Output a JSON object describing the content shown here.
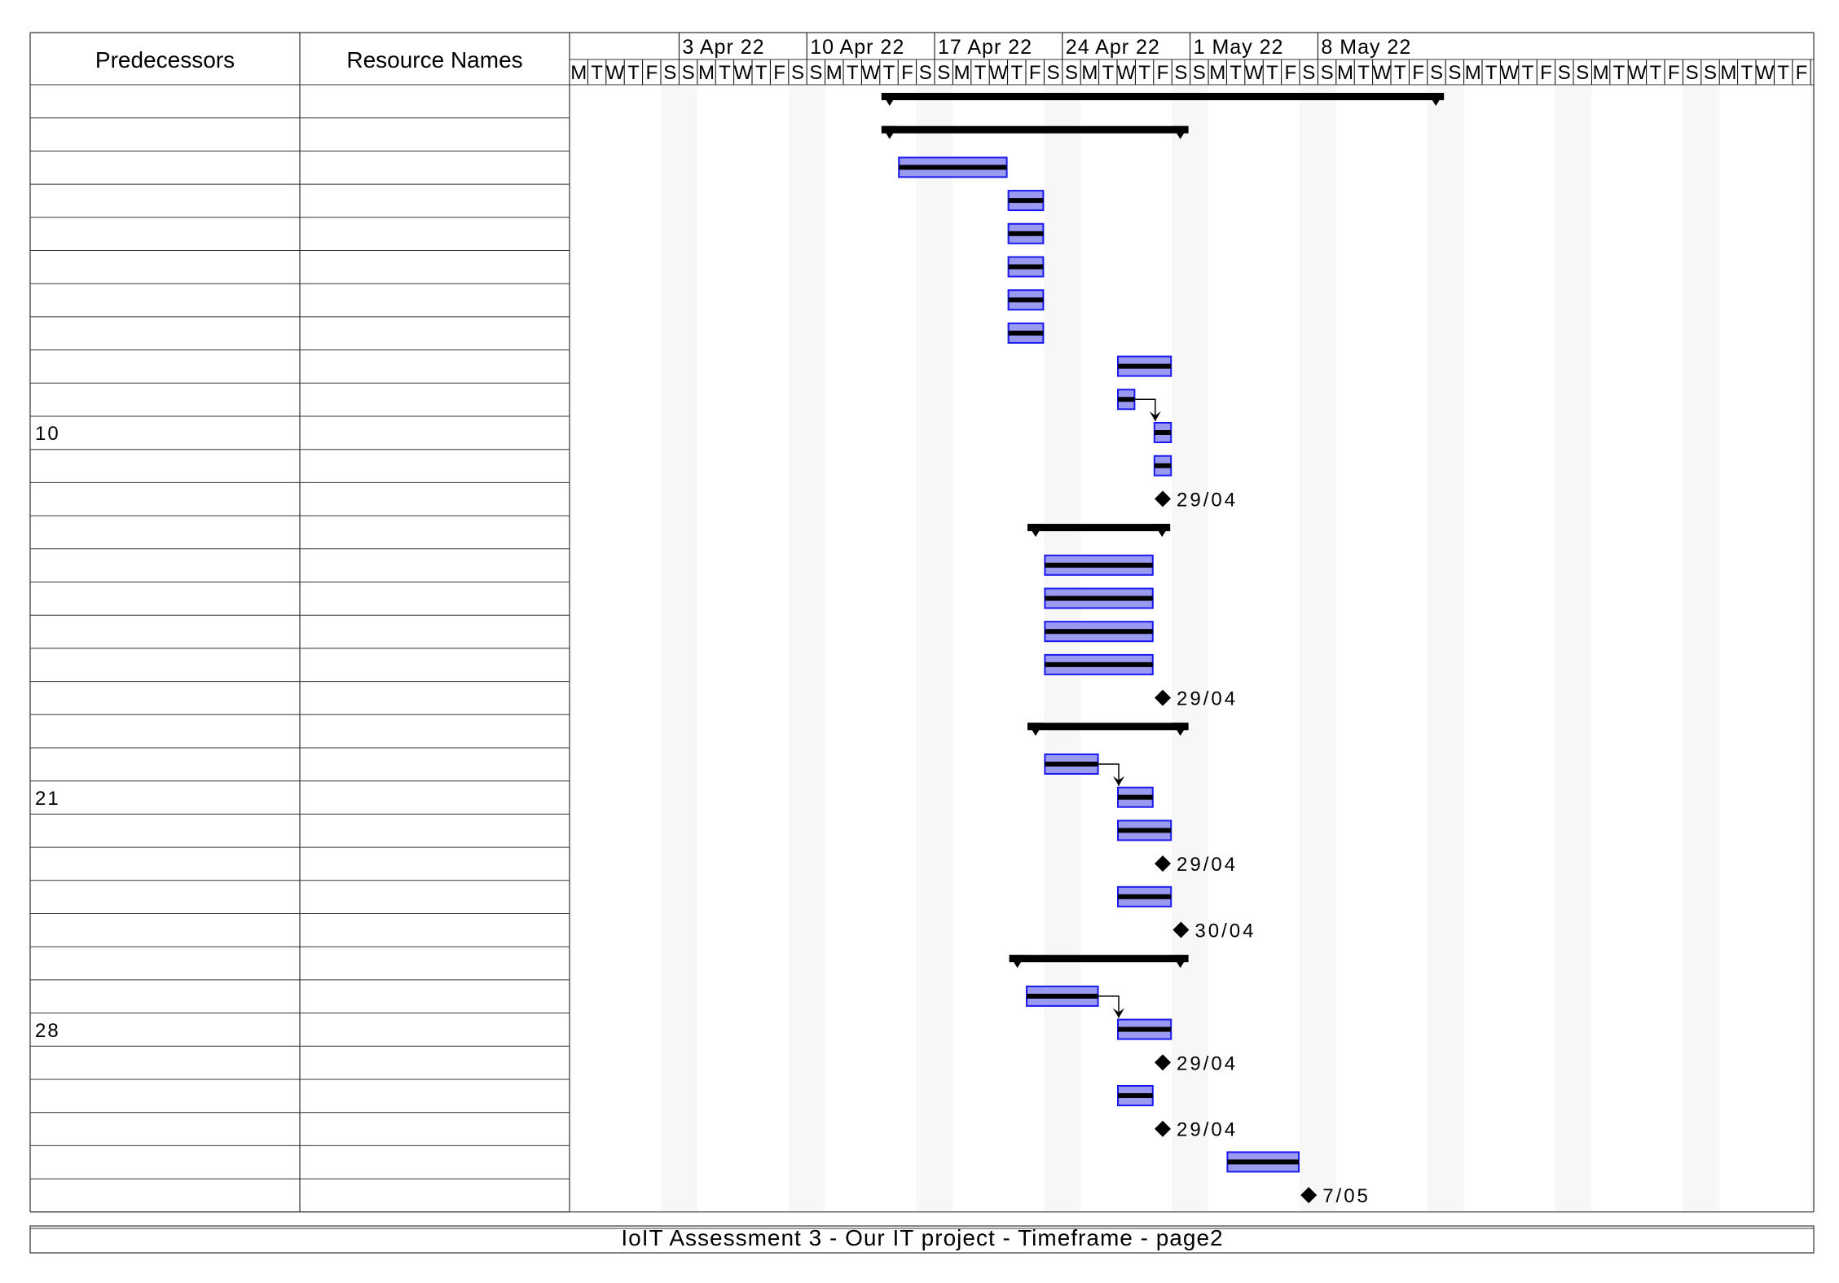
{
  "columns": {
    "predecessors": "Predecessors",
    "resources": "Resource Names"
  },
  "footer": {
    "title": "IoIT Assessment 3 - Our IT project - Timeframe  -  page2"
  },
  "timeline": {
    "start_date": "2022-03-28",
    "day_letters": [
      "M",
      "T",
      "W",
      "T",
      "F",
      "S",
      "S"
    ],
    "week_labels": [
      {
        "date": "2022-04-03",
        "label": "3 Apr 22"
      },
      {
        "date": "2022-04-10",
        "label": "10 Apr 22"
      },
      {
        "date": "2022-04-17",
        "label": "17 Apr 22"
      },
      {
        "date": "2022-04-24",
        "label": "24 Apr 22"
      },
      {
        "date": "2022-05-01",
        "label": "1 May 22"
      },
      {
        "date": "2022-05-08",
        "label": "8 May 22"
      }
    ]
  },
  "colors": {
    "task_fill": "#9a9af0",
    "task_border": "#1a1aee",
    "summary": "#000000",
    "weekend_shade": "#f7f7f7"
  },
  "rows": [
    {
      "pred": "",
      "res": ""
    },
    {
      "pred": "",
      "res": ""
    },
    {
      "pred": "",
      "res": ""
    },
    {
      "pred": "",
      "res": ""
    },
    {
      "pred": "",
      "res": ""
    },
    {
      "pred": "",
      "res": ""
    },
    {
      "pred": "",
      "res": ""
    },
    {
      "pred": "",
      "res": ""
    },
    {
      "pred": "",
      "res": ""
    },
    {
      "pred": "",
      "res": ""
    },
    {
      "pred": "10",
      "res": ""
    },
    {
      "pred": "",
      "res": ""
    },
    {
      "pred": "",
      "res": ""
    },
    {
      "pred": "",
      "res": ""
    },
    {
      "pred": "",
      "res": ""
    },
    {
      "pred": "",
      "res": ""
    },
    {
      "pred": "",
      "res": ""
    },
    {
      "pred": "",
      "res": ""
    },
    {
      "pred": "",
      "res": ""
    },
    {
      "pred": "",
      "res": ""
    },
    {
      "pred": "",
      "res": ""
    },
    {
      "pred": "21",
      "res": ""
    },
    {
      "pred": "",
      "res": ""
    },
    {
      "pred": "",
      "res": ""
    },
    {
      "pred": "",
      "res": ""
    },
    {
      "pred": "",
      "res": ""
    },
    {
      "pred": "",
      "res": ""
    },
    {
      "pred": "",
      "res": ""
    },
    {
      "pred": "28",
      "res": ""
    },
    {
      "pred": "",
      "res": ""
    },
    {
      "pred": "",
      "res": ""
    },
    {
      "pred": "",
      "res": ""
    },
    {
      "pred": "",
      "res": ""
    },
    {
      "pred": "",
      "res": ""
    }
  ],
  "chart_data": {
    "type": "gantt",
    "items": [
      {
        "row": 0,
        "kind": "summary",
        "start": "2022-04-14",
        "end": "2022-05-14"
      },
      {
        "row": 1,
        "kind": "summary",
        "start": "2022-04-14",
        "end": "2022-04-30"
      },
      {
        "row": 2,
        "kind": "task",
        "start": "2022-04-15",
        "end": "2022-04-20"
      },
      {
        "row": 3,
        "kind": "task",
        "start": "2022-04-21",
        "end": "2022-04-22"
      },
      {
        "row": 4,
        "kind": "task",
        "start": "2022-04-21",
        "end": "2022-04-22"
      },
      {
        "row": 5,
        "kind": "task",
        "start": "2022-04-21",
        "end": "2022-04-22"
      },
      {
        "row": 6,
        "kind": "task",
        "start": "2022-04-21",
        "end": "2022-04-22"
      },
      {
        "row": 7,
        "kind": "task",
        "start": "2022-04-21",
        "end": "2022-04-22"
      },
      {
        "row": 8,
        "kind": "task",
        "start": "2022-04-27",
        "end": "2022-04-29"
      },
      {
        "row": 9,
        "kind": "task",
        "start": "2022-04-27",
        "end": "2022-04-27"
      },
      {
        "row": 10,
        "kind": "task",
        "start": "2022-04-29",
        "end": "2022-04-29"
      },
      {
        "row": 11,
        "kind": "task",
        "start": "2022-04-29",
        "end": "2022-04-29"
      },
      {
        "row": 12,
        "kind": "milestone",
        "date": "2022-04-29",
        "label": "29/04"
      },
      {
        "row": 13,
        "kind": "summary",
        "start": "2022-04-22",
        "end": "2022-04-29"
      },
      {
        "row": 14,
        "kind": "task",
        "start": "2022-04-23",
        "end": "2022-04-28"
      },
      {
        "row": 15,
        "kind": "task",
        "start": "2022-04-23",
        "end": "2022-04-28"
      },
      {
        "row": 16,
        "kind": "task",
        "start": "2022-04-23",
        "end": "2022-04-28"
      },
      {
        "row": 17,
        "kind": "task",
        "start": "2022-04-23",
        "end": "2022-04-28"
      },
      {
        "row": 18,
        "kind": "milestone",
        "date": "2022-04-29",
        "label": "29/04"
      },
      {
        "row": 19,
        "kind": "summary",
        "start": "2022-04-22",
        "end": "2022-04-30"
      },
      {
        "row": 20,
        "kind": "task",
        "start": "2022-04-23",
        "end": "2022-04-25"
      },
      {
        "row": 21,
        "kind": "task",
        "start": "2022-04-27",
        "end": "2022-04-28"
      },
      {
        "row": 22,
        "kind": "task",
        "start": "2022-04-27",
        "end": "2022-04-29"
      },
      {
        "row": 23,
        "kind": "milestone",
        "date": "2022-04-29",
        "label": "29/04"
      },
      {
        "row": 24,
        "kind": "task",
        "start": "2022-04-27",
        "end": "2022-04-29"
      },
      {
        "row": 25,
        "kind": "milestone",
        "date": "2022-04-30",
        "label": "30/04"
      },
      {
        "row": 26,
        "kind": "summary",
        "start": "2022-04-21",
        "end": "2022-04-30"
      },
      {
        "row": 27,
        "kind": "task",
        "start": "2022-04-22",
        "end": "2022-04-25"
      },
      {
        "row": 28,
        "kind": "task",
        "start": "2022-04-27",
        "end": "2022-04-29"
      },
      {
        "row": 29,
        "kind": "milestone",
        "date": "2022-04-29",
        "label": "29/04"
      },
      {
        "row": 30,
        "kind": "task",
        "start": "2022-04-27",
        "end": "2022-04-28"
      },
      {
        "row": 31,
        "kind": "milestone",
        "date": "2022-04-29",
        "label": "29/04"
      },
      {
        "row": 32,
        "kind": "task",
        "start": "2022-05-03",
        "end": "2022-05-06"
      },
      {
        "row": 33,
        "kind": "milestone",
        "date": "2022-05-07",
        "label": "7/05"
      }
    ],
    "dependencies": [
      {
        "from": 9,
        "to": 10
      },
      {
        "from": 20,
        "to": 21
      },
      {
        "from": 27,
        "to": 28
      }
    ]
  }
}
